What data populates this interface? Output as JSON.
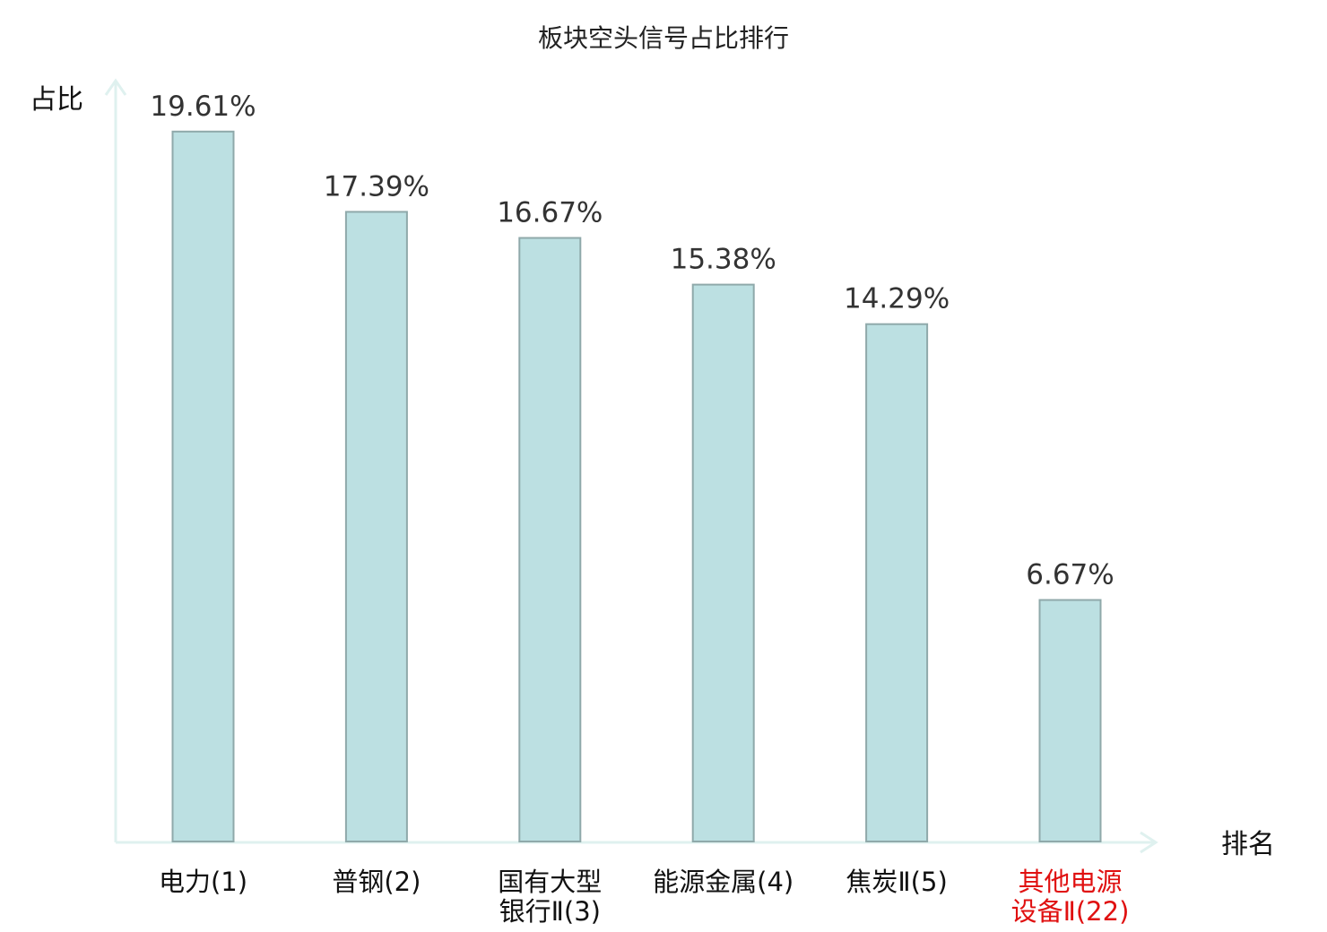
{
  "colors": {
    "bar_fill": "#bce0e2",
    "bar_stroke": "#8fa9aa",
    "axis": "#dff1ef",
    "highlight": "#e01010",
    "text": "#111111",
    "value_text": "#333333"
  },
  "chart_data": {
    "type": "bar",
    "title": "板块空头信号占比排行",
    "ylabel": "占比",
    "xlabel": "排名",
    "ylim": [
      0,
      20
    ],
    "grid": false,
    "categories": [
      [
        "电力(1)"
      ],
      [
        "普钢(2)"
      ],
      [
        "国有大型",
        "银行Ⅱ(3)"
      ],
      [
        "能源金属(4)"
      ],
      [
        "焦炭Ⅱ(5)"
      ],
      [
        "其他电源",
        "设备Ⅱ(22)"
      ]
    ],
    "highlighted": [
      false,
      false,
      false,
      false,
      false,
      true
    ],
    "values": [
      19.61,
      17.39,
      16.67,
      15.38,
      14.29,
      6.67
    ],
    "value_labels": [
      "19.61%",
      "17.39%",
      "16.67%",
      "15.38%",
      "14.29%",
      "6.67%"
    ]
  }
}
